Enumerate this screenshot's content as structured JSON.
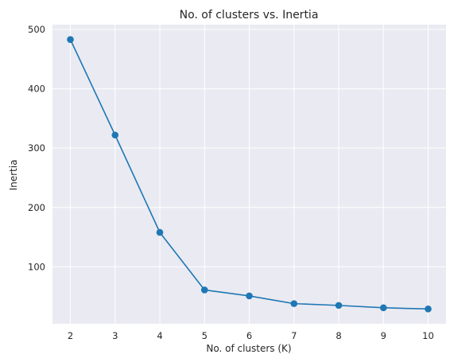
{
  "chart_data": {
    "type": "line",
    "title": "No. of clusters vs. Inertia",
    "xlabel": "No. of clusters (K)",
    "ylabel": "Inertia",
    "x": [
      2,
      3,
      4,
      5,
      6,
      7,
      8,
      9,
      10
    ],
    "series": [
      {
        "values": [
          483,
          322,
          158,
          61,
          51,
          38,
          35,
          31,
          29
        ]
      }
    ],
    "xticks": [
      2,
      3,
      4,
      5,
      6,
      7,
      8,
      9,
      10
    ],
    "yticks": [
      100,
      200,
      300,
      400,
      500
    ],
    "xlim": [
      1.6,
      10.4
    ],
    "ylim": [
      4,
      508
    ],
    "grid": true,
    "marker": "circle",
    "colors": {
      "line": "#1f77b4",
      "background": "#eaeaf2",
      "grid": "#ffffff",
      "text": "#262626"
    }
  }
}
